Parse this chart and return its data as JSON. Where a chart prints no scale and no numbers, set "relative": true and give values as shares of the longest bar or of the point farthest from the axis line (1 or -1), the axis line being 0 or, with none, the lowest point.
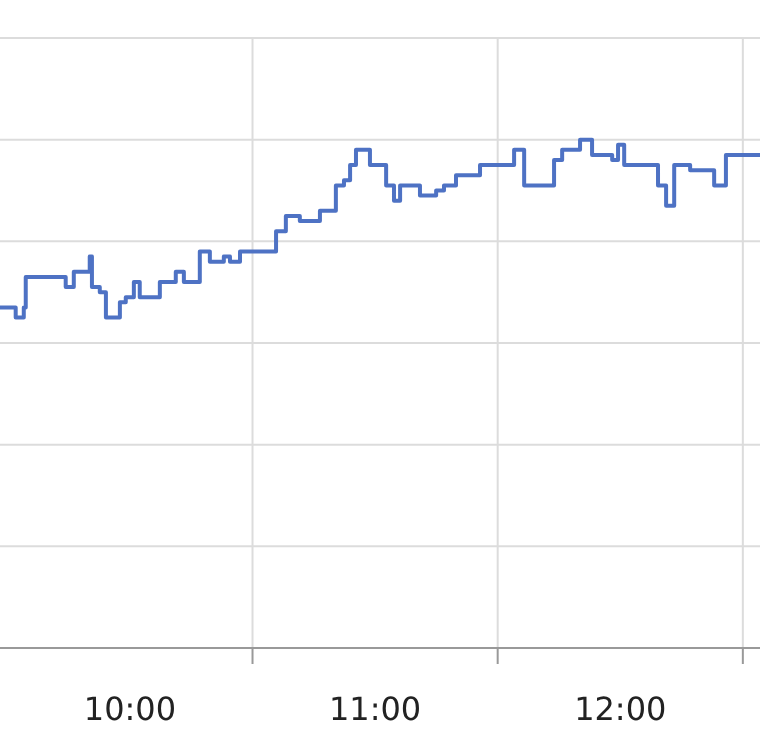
{
  "chart_data": {
    "type": "step",
    "relative": true,
    "grid": true,
    "x": [
      9.47,
      9.534,
      9.567,
      9.575,
      9.738,
      9.771,
      9.836,
      9.845,
      9.877,
      9.902,
      9.959,
      9.983,
      10.016,
      10.04,
      10.122,
      10.187,
      10.22,
      10.285,
      10.326,
      10.383,
      10.408,
      10.449,
      10.596,
      10.636,
      10.693,
      10.775,
      10.84,
      10.873,
      10.898,
      10.922,
      10.979,
      11.045,
      11.077,
      11.102,
      11.183,
      11.249,
      11.281,
      11.33,
      11.428,
      11.567,
      11.608,
      11.73,
      11.763,
      11.836,
      11.885,
      11.967,
      11.991,
      12.016,
      12.138,
      12.154,
      12.187,
      12.22,
      12.285,
      12.383,
      12.431,
      12.57
    ],
    "series": [
      {
        "color": "#4e72c4",
        "values": [
          0.67,
          0.65,
          0.67,
          0.73,
          0.71,
          0.74,
          0.77,
          0.71,
          0.7,
          0.65,
          0.68,
          0.69,
          0.72,
          0.69,
          0.72,
          0.74,
          0.72,
          0.78,
          0.76,
          0.77,
          0.76,
          0.78,
          0.82,
          0.85,
          0.84,
          0.86,
          0.91,
          0.92,
          0.95,
          0.98,
          0.95,
          0.91,
          0.88,
          0.91,
          0.89,
          0.9,
          0.91,
          0.93,
          0.95,
          0.98,
          0.91,
          0.96,
          0.98,
          1.0,
          0.97,
          0.96,
          0.99,
          0.95,
          0.95,
          0.91,
          0.87,
          0.95,
          0.94,
          0.91,
          0.97,
          0.97
        ]
      }
    ],
    "xlim": [
      9.47,
      12.57
    ],
    "xticks": [
      {
        "value": 10,
        "label": "10:00"
      },
      {
        "value": 10.5,
        "label": null
      },
      {
        "value": 11,
        "label": "11:00"
      },
      {
        "value": 11.5,
        "label": null
      },
      {
        "value": 12,
        "label": "12:00"
      },
      {
        "value": 12.5,
        "label": null
      }
    ]
  }
}
